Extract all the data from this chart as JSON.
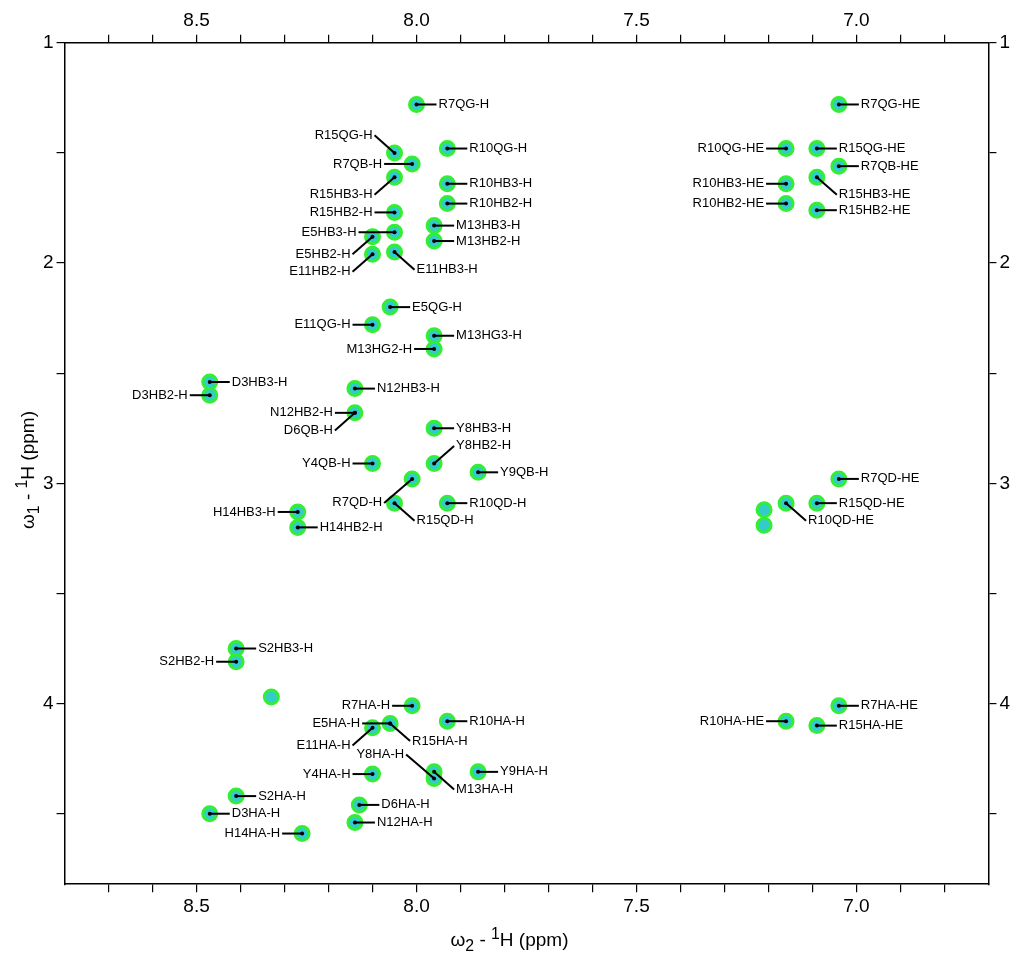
{
  "chart_data": {
    "type": "scatter",
    "xlabel": "ω$_{2}$ - $^{1}$H  (ppm)",
    "ylabel": "ω$_{1}$ - $^{1}$H  (ppm)",
    "xlim": [
      8.8,
      6.7
    ],
    "xticks": [
      {
        "value": 8.7,
        "label": null
      },
      {
        "value": 8.6,
        "label": null
      },
      8.5,
      {
        "value": 8.4,
        "label": null
      },
      {
        "value": 8.3,
        "label": null
      },
      {
        "value": 8.2,
        "label": null
      },
      {
        "value": 8.1,
        "label": null
      },
      {
        "value": 8.0,
        "label": "8.0"
      },
      {
        "value": 7.9,
        "label": null
      },
      {
        "value": 7.8,
        "label": null
      },
      {
        "value": 7.7,
        "label": null
      },
      {
        "value": 7.6,
        "label": null
      },
      7.5,
      {
        "value": 7.4,
        "label": null
      },
      {
        "value": 7.3,
        "label": null
      },
      {
        "value": 7.2,
        "label": null
      },
      {
        "value": 7.1,
        "label": null
      },
      {
        "value": 7.0,
        "label": "7.0"
      },
      {
        "value": 6.9,
        "label": null
      },
      {
        "value": 6.8,
        "label": null
      }
    ],
    "x2lim": [
      8.8,
      6.7
    ],
    "x2ticks": [
      {
        "value": 8.7,
        "label": null
      },
      {
        "value": 8.6,
        "label": null
      },
      8.5,
      {
        "value": 8.4,
        "label": null
      },
      {
        "value": 8.3,
        "label": null
      },
      {
        "value": 8.2,
        "label": null
      },
      {
        "value": 8.1,
        "label": null
      },
      {
        "value": 8.0,
        "label": "8.0"
      },
      {
        "value": 7.9,
        "label": null
      },
      {
        "value": 7.8,
        "label": null
      },
      {
        "value": 7.7,
        "label": null
      },
      {
        "value": 7.6,
        "label": null
      },
      7.5,
      {
        "value": 7.4,
        "label": null
      },
      {
        "value": 7.3,
        "label": null
      },
      {
        "value": 7.2,
        "label": null
      },
      {
        "value": 7.1,
        "label": null
      },
      {
        "value": 7.0,
        "label": "7.0"
      },
      {
        "value": 6.9,
        "label": null
      },
      {
        "value": 6.8,
        "label": null
      }
    ],
    "ylim": [
      4.82,
      1.0
    ],
    "yticks": [
      1,
      {
        "value": 1.5,
        "label": null
      },
      2,
      {
        "value": 2.5,
        "label": null
      },
      3,
      {
        "value": 3.5,
        "label": null
      },
      4,
      {
        "value": 4.5,
        "label": null
      }
    ],
    "y2lim": [
      4.82,
      1.0
    ],
    "y2ticks": [
      1,
      {
        "value": 1.5,
        "label": null
      },
      2,
      {
        "value": 2.5,
        "label": null
      },
      3,
      {
        "value": 3.5,
        "label": null
      },
      4,
      {
        "value": 4.5,
        "label": null
      }
    ],
    "marker": "circle",
    "x": [
      8.0,
      8.01,
      8.05,
      8.05,
      8.05,
      8.05,
      8.05,
      8.1,
      8.1,
      7.93,
      7.93,
      7.93,
      7.96,
      7.96,
      8.06,
      8.1,
      7.96,
      7.96,
      8.47,
      8.47,
      8.14,
      8.14,
      7.96,
      7.96,
      8.1,
      7.86,
      8.01,
      8.05,
      7.93,
      8.27,
      8.27,
      8.41,
      8.41,
      8.33,
      8.01,
      7.93,
      8.06,
      8.1,
      8.1,
      7.96,
      7.96,
      7.86,
      8.41,
      8.47,
      8.13,
      8.14,
      8.26,
      7.04,
      7.16,
      7.09,
      7.04,
      7.16,
      7.09,
      7.16,
      7.09,
      7.04,
      7.16,
      7.09,
      7.21,
      7.21,
      7.04,
      7.16,
      7.09
    ],
    "series": [
      {
        "color": "#33cccc",
        "values": [
          1.28,
          1.55,
          1.5,
          1.61,
          1.77,
          1.86,
          1.95,
          1.88,
          1.96,
          1.48,
          1.64,
          1.73,
          1.83,
          1.9,
          2.2,
          2.28,
          2.33,
          2.39,
          2.54,
          2.6,
          2.57,
          2.68,
          2.75,
          2.91,
          2.91,
          2.95,
          2.98,
          3.09,
          3.09,
          3.13,
          3.2,
          3.75,
          3.81,
          3.97,
          4.01,
          4.08,
          4.09,
          4.11,
          4.32,
          4.31,
          4.34,
          4.31,
          4.42,
          4.5,
          4.46,
          4.54,
          4.59,
          1.28,
          1.48,
          1.48,
          1.56,
          1.64,
          1.61,
          1.73,
          1.76,
          2.98,
          3.09,
          3.09,
          3.12,
          3.19,
          4.01,
          4.08,
          4.1
        ]
      }
    ],
    "annotations": [
      {
        "text": "R7QG-H",
        "x": 8.0,
        "y": 1.28
      },
      {
        "text": "R7QB-H",
        "x": 8.01,
        "y": 1.55
      },
      {
        "text": "R15QG-H",
        "x": 8.05,
        "y": 1.5
      },
      {
        "text": "R15HB3-H",
        "x": 8.05,
        "y": 1.61
      },
      {
        "text": "R15HB2-H",
        "x": 8.05,
        "y": 1.77
      },
      {
        "text": "E5HB3-H",
        "x": 8.05,
        "y": 1.86
      },
      {
        "text": "E11HB3-H",
        "x": 8.05,
        "y": 1.95
      },
      {
        "text": "E5HB2-H",
        "x": 8.1,
        "y": 1.88
      },
      {
        "text": "E11HB2-H",
        "x": 8.1,
        "y": 1.96
      },
      {
        "text": "R10QG-H",
        "x": 7.93,
        "y": 1.48
      },
      {
        "text": "R10HB3-H",
        "x": 7.93,
        "y": 1.64
      },
      {
        "text": "R10HB2-H",
        "x": 7.93,
        "y": 1.73
      },
      {
        "text": "M13HB3-H",
        "x": 7.96,
        "y": 1.83
      },
      {
        "text": "M13HB2-H",
        "x": 7.96,
        "y": 1.9
      },
      {
        "text": "E5QG-H",
        "x": 8.06,
        "y": 2.2
      },
      {
        "text": "E11QG-H",
        "x": 8.1,
        "y": 2.28
      },
      {
        "text": "M13HG3-H",
        "x": 7.96,
        "y": 2.33
      },
      {
        "text": "M13HG2-H",
        "x": 7.96,
        "y": 2.39
      },
      {
        "text": "D3HB3-H",
        "x": 8.47,
        "y": 2.54
      },
      {
        "text": "D3HB2-H",
        "x": 8.47,
        "y": 2.6
      },
      {
        "text": "N12HB3-H",
        "x": 8.14,
        "y": 2.57
      },
      {
        "text": "N12HB2-H",
        "x": 8.14,
        "y": 2.68
      },
      {
        "text": "D6QB-H",
        "x": 8.14,
        "y": 2.68
      },
      {
        "text": "Y8HB3-H",
        "x": 7.96,
        "y": 2.75
      },
      {
        "text": "Y8HB2-H",
        "x": 7.96,
        "y": 2.91
      },
      {
        "text": "Y4QB-H",
        "x": 8.1,
        "y": 2.91
      },
      {
        "text": "Y9QB-H",
        "x": 7.86,
        "y": 2.95
      },
      {
        "text": "R7QD-H",
        "x": 8.01,
        "y": 2.98
      },
      {
        "text": "R15QD-H",
        "x": 8.05,
        "y": 3.09
      },
      {
        "text": "R10QD-H",
        "x": 7.93,
        "y": 3.09
      },
      {
        "text": "H14HB3-H",
        "x": 8.27,
        "y": 3.13
      },
      {
        "text": "H14HB2-H",
        "x": 8.27,
        "y": 3.2
      },
      {
        "text": "S2HB3-H",
        "x": 8.41,
        "y": 3.75
      },
      {
        "text": "S2HB2-H",
        "x": 8.41,
        "y": 3.81
      },
      {
        "text": "R7HA-H",
        "x": 8.01,
        "y": 4.01
      },
      {
        "text": "R10HA-H",
        "x": 7.93,
        "y": 4.08
      },
      {
        "text": "R15HA-H",
        "x": 8.06,
        "y": 4.09
      },
      {
        "text": "E5HA-H",
        "x": 8.06,
        "y": 4.09
      },
      {
        "text": "E11HA-H",
        "x": 8.1,
        "y": 4.11
      },
      {
        "text": "Y4HA-H",
        "x": 8.1,
        "y": 4.32
      },
      {
        "text": "M13HA-H",
        "x": 7.96,
        "y": 4.31
      },
      {
        "text": "Y8HA-H",
        "x": 7.96,
        "y": 4.34
      },
      {
        "text": "Y9HA-H",
        "x": 7.86,
        "y": 4.31
      },
      {
        "text": "S2HA-H",
        "x": 8.41,
        "y": 4.42
      },
      {
        "text": "D3HA-H",
        "x": 8.47,
        "y": 4.5
      },
      {
        "text": "D6HA-H",
        "x": 8.13,
        "y": 4.46
      },
      {
        "text": "N12HA-H",
        "x": 8.14,
        "y": 4.54
      },
      {
        "text": "H14HA-H",
        "x": 8.26,
        "y": 4.59
      },
      {
        "text": "R7QG-HE",
        "x": 7.04,
        "y": 1.28
      },
      {
        "text": "R10QG-HE",
        "x": 7.16,
        "y": 1.48
      },
      {
        "text": "R15QG-HE",
        "x": 7.09,
        "y": 1.48
      },
      {
        "text": "R7QB-HE",
        "x": 7.04,
        "y": 1.56
      },
      {
        "text": "R10HB3-HE",
        "x": 7.16,
        "y": 1.64
      },
      {
        "text": "R15HB3-HE",
        "x": 7.09,
        "y": 1.61
      },
      {
        "text": "R10HB2-HE",
        "x": 7.16,
        "y": 1.73
      },
      {
        "text": "R15HB2-HE",
        "x": 7.09,
        "y": 1.76
      },
      {
        "text": "R7QD-HE",
        "x": 7.04,
        "y": 2.98
      },
      {
        "text": "R10QD-HE",
        "x": 7.16,
        "y": 3.09
      },
      {
        "text": "R15QD-HE",
        "x": 7.09,
        "y": 3.09
      },
      {
        "text": "R7HA-HE",
        "x": 7.04,
        "y": 4.01
      },
      {
        "text": "R10HA-HE",
        "x": 7.16,
        "y": 4.08
      },
      {
        "text": "R15HA-HE",
        "x": 7.09,
        "y": 4.1
      }
    ]
  }
}
